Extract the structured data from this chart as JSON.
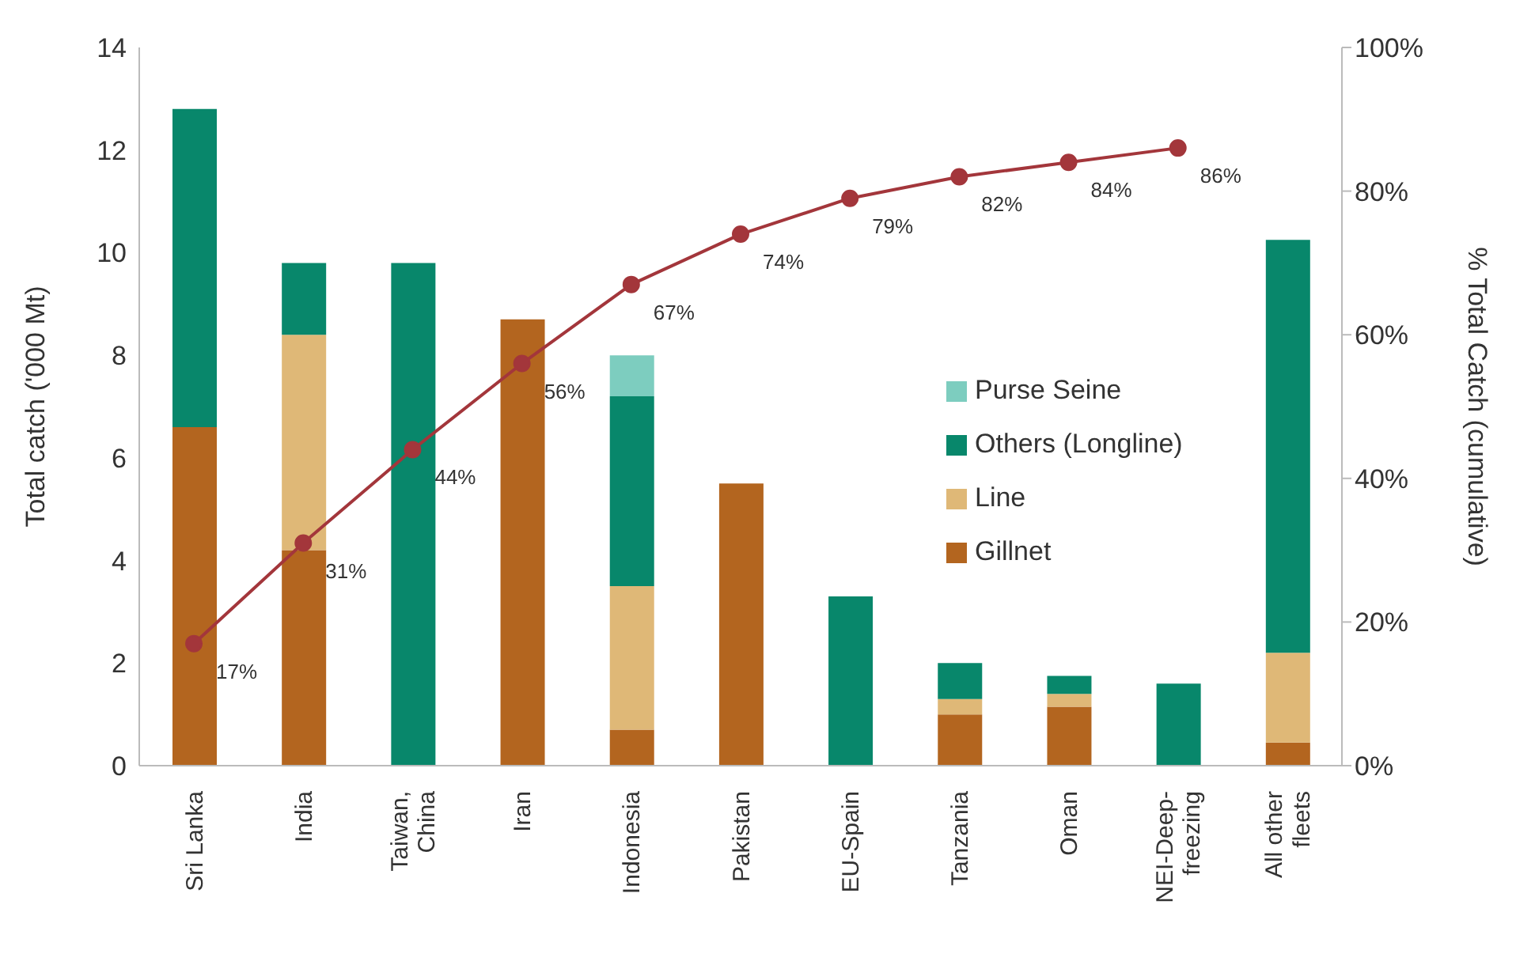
{
  "chart_data": {
    "type": "bar",
    "stacked": true,
    "ylabel": "Total catch ('000 Mt)",
    "y2label": "% Total Catch (cumulative)",
    "categories": [
      "Sri Lanka",
      "India",
      "Taiwan, China",
      "Iran",
      "Indonesia",
      "Pakistan",
      "EU-Spain",
      "Tanzania",
      "Oman",
      "NEI-Deep-freezing",
      "All other fleets"
    ],
    "series": [
      {
        "name": "Gillnet",
        "color": "#b3651f",
        "values": [
          6.6,
          4.2,
          null,
          8.7,
          0.7,
          5.5,
          null,
          1.0,
          1.15,
          null,
          0.45
        ]
      },
      {
        "name": "Line",
        "color": "#dfb877",
        "values": [
          null,
          4.2,
          null,
          null,
          2.8,
          null,
          null,
          0.3,
          0.25,
          null,
          1.75
        ]
      },
      {
        "name": "Others (Longline)",
        "color": "#08876b",
        "values": [
          6.2,
          1.4,
          9.8,
          null,
          3.7,
          null,
          3.3,
          0.7,
          0.35,
          1.6,
          8.05
        ]
      },
      {
        "name": "Purse Seine",
        "color": "#7dcdbf",
        "values": [
          null,
          null,
          null,
          null,
          0.8,
          null,
          null,
          null,
          null,
          null,
          null
        ]
      },
      {
        "type": "line",
        "axis": "y2",
        "color": "#a3363b",
        "values": [
          17,
          31,
          44,
          56,
          67,
          74,
          79,
          82,
          84,
          86,
          null
        ],
        "value_labels": [
          "17%",
          "31%",
          "44%",
          "56%",
          "67%",
          "74%",
          "79%",
          "82%",
          "84%",
          "86%",
          null
        ]
      }
    ],
    "ylim": [
      0,
      14
    ],
    "yticks": [
      0,
      2,
      4,
      6,
      8,
      10,
      12,
      14
    ],
    "y2lim": [
      0,
      100
    ],
    "y2ticks": [
      {
        "value": 0,
        "label": "0%"
      },
      {
        "value": 20,
        "label": "20%"
      },
      {
        "value": 40,
        "label": "40%"
      },
      {
        "value": 60,
        "label": "60%"
      },
      {
        "value": 80,
        "label": "80%"
      },
      {
        "value": 100,
        "label": "100%"
      }
    ],
    "marker": "circle",
    "grid": false,
    "legend": "right"
  }
}
